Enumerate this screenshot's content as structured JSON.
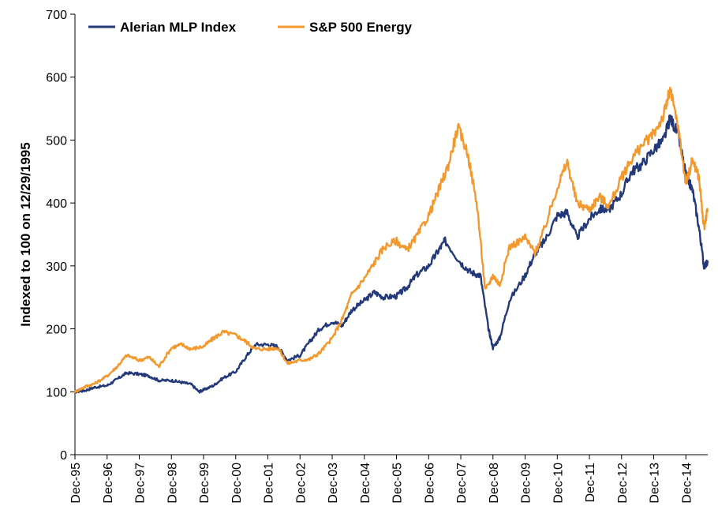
{
  "chart_data": {
    "type": "line",
    "title": "",
    "xlabel": "",
    "ylabel": "Indexed to 100 on 12/29/1995",
    "ylim": [
      0,
      700
    ],
    "yticks": [
      0,
      100,
      200,
      300,
      400,
      500,
      600,
      700
    ],
    "xlim": [
      1995.99,
      2015.67
    ],
    "xticks": [
      {
        "label": "Dec-95",
        "x": 1995.99
      },
      {
        "label": "Dec-96",
        "x": 1996.99
      },
      {
        "label": "Dec-97",
        "x": 1997.99
      },
      {
        "label": "Dec-98",
        "x": 1998.99
      },
      {
        "label": "Dec-99",
        "x": 1999.99
      },
      {
        "label": "Dec-00",
        "x": 2000.99
      },
      {
        "label": "Dec-01",
        "x": 2001.99
      },
      {
        "label": "Dec-02",
        "x": 2002.99
      },
      {
        "label": "Dec-03",
        "x": 2003.99
      },
      {
        "label": "Dec-04",
        "x": 2004.99
      },
      {
        "label": "Dec-05",
        "x": 2005.99
      },
      {
        "label": "Dec-06",
        "x": 2006.99
      },
      {
        "label": "Dec-07",
        "x": 2007.99
      },
      {
        "label": "Dec-08",
        "x": 2008.99
      },
      {
        "label": "Dec-09",
        "x": 2009.99
      },
      {
        "label": "Dec-10",
        "x": 2010.99
      },
      {
        "label": "Dec-11",
        "x": 2011.99
      },
      {
        "label": "Dec-12",
        "x": 2012.99
      },
      {
        "label": "Dec-13",
        "x": 2013.99
      },
      {
        "label": "Dec-14",
        "x": 2014.99
      }
    ],
    "grid": false,
    "legend_position": "top-left",
    "series": [
      {
        "name": "Alerian MLP Index",
        "color": "#24397a",
        "points": [
          [
            1995.99,
            100
          ],
          [
            1996.3,
            102
          ],
          [
            1996.6,
            107
          ],
          [
            1996.99,
            110
          ],
          [
            1997.3,
            120
          ],
          [
            1997.6,
            130
          ],
          [
            1997.99,
            128
          ],
          [
            1998.3,
            125
          ],
          [
            1998.6,
            118
          ],
          [
            1998.99,
            118
          ],
          [
            1999.3,
            115
          ],
          [
            1999.6,
            112
          ],
          [
            1999.85,
            100
          ],
          [
            1999.99,
            103
          ],
          [
            2000.3,
            110
          ],
          [
            2000.6,
            122
          ],
          [
            2000.99,
            132
          ],
          [
            2001.3,
            155
          ],
          [
            2001.6,
            175
          ],
          [
            2001.99,
            175
          ],
          [
            2002.3,
            172
          ],
          [
            2002.6,
            150
          ],
          [
            2002.99,
            158
          ],
          [
            2003.3,
            180
          ],
          [
            2003.6,
            200
          ],
          [
            2003.99,
            212
          ],
          [
            2004.3,
            205
          ],
          [
            2004.6,
            230
          ],
          [
            2004.99,
            245
          ],
          [
            2005.3,
            258
          ],
          [
            2005.6,
            250
          ],
          [
            2005.99,
            252
          ],
          [
            2006.3,
            265
          ],
          [
            2006.6,
            285
          ],
          [
            2006.99,
            300
          ],
          [
            2007.3,
            325
          ],
          [
            2007.5,
            340
          ],
          [
            2007.99,
            305
          ],
          [
            2008.3,
            290
          ],
          [
            2008.6,
            285
          ],
          [
            2008.85,
            200
          ],
          [
            2008.99,
            170
          ],
          [
            2009.2,
            185
          ],
          [
            2009.5,
            245
          ],
          [
            2009.99,
            285
          ],
          [
            2010.3,
            320
          ],
          [
            2010.6,
            340
          ],
          [
            2010.99,
            380
          ],
          [
            2011.3,
            385
          ],
          [
            2011.6,
            345
          ],
          [
            2011.99,
            375
          ],
          [
            2012.3,
            390
          ],
          [
            2012.6,
            390
          ],
          [
            2012.99,
            415
          ],
          [
            2013.3,
            450
          ],
          [
            2013.6,
            460
          ],
          [
            2013.99,
            485
          ],
          [
            2014.3,
            500
          ],
          [
            2014.5,
            535
          ],
          [
            2014.75,
            510
          ],
          [
            2014.99,
            445
          ],
          [
            2015.2,
            420
          ],
          [
            2015.4,
            360
          ],
          [
            2015.55,
            300
          ],
          [
            2015.67,
            305
          ]
        ]
      },
      {
        "name": "S&P 500 Energy",
        "color": "#f3982c",
        "points": [
          [
            1995.99,
            100
          ],
          [
            1996.3,
            108
          ],
          [
            1996.6,
            113
          ],
          [
            1996.99,
            125
          ],
          [
            1997.3,
            140
          ],
          [
            1997.6,
            158
          ],
          [
            1997.99,
            150
          ],
          [
            1998.3,
            155
          ],
          [
            1998.6,
            140
          ],
          [
            1998.99,
            170
          ],
          [
            1999.3,
            175
          ],
          [
            1999.6,
            168
          ],
          [
            1999.99,
            172
          ],
          [
            2000.3,
            185
          ],
          [
            2000.6,
            195
          ],
          [
            2000.99,
            190
          ],
          [
            2001.3,
            180
          ],
          [
            2001.6,
            168
          ],
          [
            2001.99,
            168
          ],
          [
            2002.3,
            170
          ],
          [
            2002.6,
            145
          ],
          [
            2002.99,
            150
          ],
          [
            2003.3,
            152
          ],
          [
            2003.6,
            162
          ],
          [
            2003.99,
            185
          ],
          [
            2004.3,
            215
          ],
          [
            2004.6,
            255
          ],
          [
            2004.99,
            280
          ],
          [
            2005.3,
            305
          ],
          [
            2005.6,
            330
          ],
          [
            2005.99,
            340
          ],
          [
            2006.3,
            325
          ],
          [
            2006.6,
            345
          ],
          [
            2006.99,
            380
          ],
          [
            2007.3,
            420
          ],
          [
            2007.6,
            460
          ],
          [
            2007.9,
            520
          ],
          [
            2008.2,
            480
          ],
          [
            2008.5,
            395
          ],
          [
            2008.75,
            260
          ],
          [
            2008.99,
            285
          ],
          [
            2009.2,
            270
          ],
          [
            2009.5,
            330
          ],
          [
            2009.99,
            345
          ],
          [
            2010.3,
            320
          ],
          [
            2010.6,
            360
          ],
          [
            2010.99,
            425
          ],
          [
            2011.3,
            465
          ],
          [
            2011.6,
            400
          ],
          [
            2011.99,
            390
          ],
          [
            2012.3,
            410
          ],
          [
            2012.6,
            395
          ],
          [
            2012.99,
            440
          ],
          [
            2013.3,
            470
          ],
          [
            2013.6,
            490
          ],
          [
            2013.99,
            510
          ],
          [
            2014.3,
            540
          ],
          [
            2014.5,
            580
          ],
          [
            2014.75,
            520
          ],
          [
            2014.99,
            430
          ],
          [
            2015.2,
            470
          ],
          [
            2015.4,
            440
          ],
          [
            2015.55,
            360
          ],
          [
            2015.67,
            390
          ]
        ]
      }
    ]
  }
}
